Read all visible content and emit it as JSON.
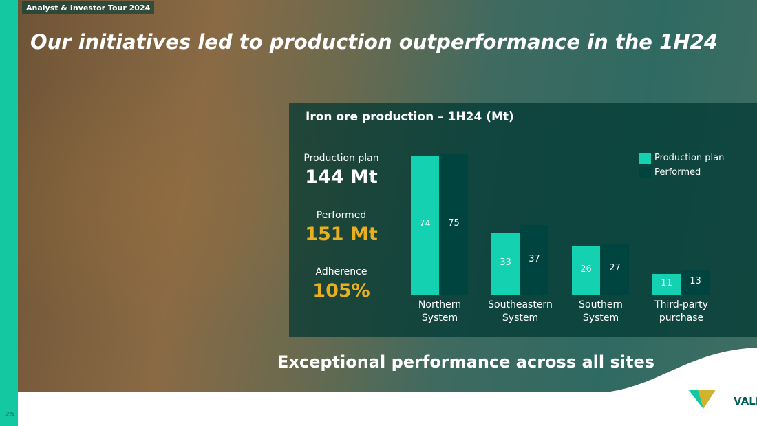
{
  "header": {
    "tag": "Analyst & Investor Tour 2024",
    "title": "Our initiatives led to production outperformance in the 1H24"
  },
  "kpis": [
    {
      "label": "Production plan",
      "value": "144 Mt"
    },
    {
      "label": "Performed",
      "value": "151 Mt"
    },
    {
      "label": "Adherence",
      "value": "105%"
    }
  ],
  "chart_data": {
    "type": "bar",
    "title": "Iron ore production – 1H24 (Mt)",
    "categories": [
      "Northern System",
      "Southeastern System",
      "Southern System",
      "Third-party purchase"
    ],
    "series": [
      {
        "name": "Production plan",
        "color": "#14d1b2",
        "values": [
          74,
          33,
          26,
          11
        ]
      },
      {
        "name": "Performed",
        "color": "#00443f",
        "values": [
          75,
          37,
          27,
          13
        ]
      }
    ],
    "legend": "top-right"
  },
  "footer": {
    "subtitle": "Exceptional performance across all sites",
    "page": "25",
    "logo": "VALE"
  }
}
